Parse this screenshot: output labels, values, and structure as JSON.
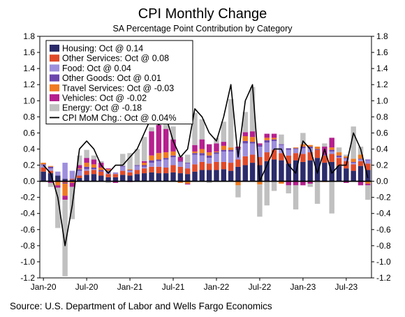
{
  "chart_data": {
    "type": "bar",
    "title": "CPI Monthly Change",
    "subtitle": "SA Percentage Point Contribution by Category",
    "source": "Source: U.S. Department of Labor and Wells Fargo Economics",
    "ylim": [
      -1.2,
      1.8
    ],
    "yticks": [
      -1.2,
      -1.0,
      -0.8,
      -0.6,
      -0.4,
      -0.2,
      0.0,
      0.2,
      0.4,
      0.6,
      0.8,
      1.0,
      1.2,
      1.4,
      1.6,
      1.8
    ],
    "ytick_labels": [
      "-1.2",
      "-1.0",
      "-0.8",
      "-0.6",
      "-0.4",
      "-0.2",
      "0.0",
      "0.2",
      "0.4",
      "0.6",
      "0.8",
      "1.0",
      "1.2",
      "1.4",
      "1.6",
      "1.8"
    ],
    "x_ticks": [
      {
        "index": 0,
        "label": "Jan-20"
      },
      {
        "index": 6,
        "label": "Jul-20"
      },
      {
        "index": 12,
        "label": "Jan-21"
      },
      {
        "index": 18,
        "label": "Jul-21"
      },
      {
        "index": 24,
        "label": "Jan-22"
      },
      {
        "index": 30,
        "label": "Jul-22"
      },
      {
        "index": 36,
        "label": "Jan-23"
      },
      {
        "index": 42,
        "label": "Jul-23"
      }
    ],
    "months": [
      "Jan-20",
      "Feb-20",
      "Mar-20",
      "Apr-20",
      "May-20",
      "Jun-20",
      "Jul-20",
      "Aug-20",
      "Sep-20",
      "Oct-20",
      "Nov-20",
      "Dec-20",
      "Jan-21",
      "Feb-21",
      "Mar-21",
      "Apr-21",
      "May-21",
      "Jun-21",
      "Jul-21",
      "Aug-21",
      "Sep-21",
      "Oct-21",
      "Nov-21",
      "Dec-21",
      "Jan-22",
      "Feb-22",
      "Mar-22",
      "Apr-22",
      "May-22",
      "Jun-22",
      "Jul-22",
      "Aug-22",
      "Sep-22",
      "Oct-22",
      "Nov-22",
      "Dec-22",
      "Jan-23",
      "Feb-23",
      "Mar-23",
      "Apr-23",
      "May-23",
      "Jun-23",
      "Jul-23",
      "Aug-23",
      "Sep-23",
      "Oct-23"
    ],
    "legend_placement": "top-left",
    "series": [
      {
        "name": "Housing: Oct @ 0.14",
        "color": "#2b2b6b",
        "values": [
          0.12,
          0.1,
          0.07,
          0.03,
          0.02,
          0.04,
          0.08,
          0.09,
          0.07,
          0.05,
          0.05,
          0.08,
          0.07,
          0.09,
          0.1,
          0.11,
          0.1,
          0.1,
          0.11,
          0.1,
          0.09,
          0.12,
          0.14,
          0.14,
          0.14,
          0.15,
          0.13,
          0.18,
          0.2,
          0.23,
          0.2,
          0.25,
          0.27,
          0.26,
          0.22,
          0.26,
          0.24,
          0.26,
          0.29,
          0.23,
          0.24,
          0.19,
          0.16,
          0.13,
          0.19,
          0.14
        ]
      },
      {
        "name": "Other Services: Oct @ 0.08",
        "color": "#e04a2a",
        "values": [
          0.05,
          0.03,
          0.0,
          -0.02,
          0.01,
          0.03,
          0.05,
          0.05,
          0.05,
          0.04,
          0.04,
          0.05,
          0.04,
          0.05,
          0.06,
          0.07,
          0.08,
          0.07,
          0.09,
          0.08,
          0.07,
          0.09,
          0.1,
          0.08,
          0.1,
          0.09,
          0.1,
          0.09,
          0.11,
          0.1,
          0.1,
          0.11,
          0.12,
          0.09,
          0.1,
          0.09,
          0.1,
          0.1,
          0.1,
          0.09,
          0.1,
          0.1,
          0.09,
          0.08,
          0.06,
          0.08
        ]
      },
      {
        "name": "Food: Oct @ 0.04",
        "color": "#9d8fdc",
        "values": [
          0.03,
          0.03,
          0.05,
          0.2,
          0.1,
          0.06,
          0.02,
          0.01,
          0.0,
          0.03,
          0.02,
          0.05,
          0.02,
          0.05,
          0.02,
          0.05,
          0.07,
          0.1,
          0.1,
          0.06,
          0.06,
          0.12,
          0.08,
          0.07,
          0.1,
          0.13,
          0.14,
          0.12,
          0.16,
          0.14,
          0.13,
          0.12,
          0.11,
          0.1,
          0.07,
          0.05,
          0.07,
          0.05,
          0.0,
          0.0,
          0.03,
          0.01,
          0.03,
          0.02,
          0.02,
          0.04
        ]
      },
      {
        "name": "Other Goods: Oct @ 0.01",
        "color": "#6b47ad",
        "values": [
          0.01,
          0.02,
          0.0,
          -0.01,
          0.0,
          0.02,
          0.03,
          0.02,
          0.02,
          0.01,
          0.0,
          0.01,
          0.01,
          0.01,
          0.02,
          0.03,
          0.02,
          0.02,
          0.02,
          0.01,
          0.01,
          0.02,
          0.03,
          0.03,
          0.02,
          0.02,
          0.02,
          0.02,
          0.03,
          0.02,
          0.02,
          0.03,
          0.02,
          0.01,
          0.02,
          0.01,
          0.02,
          0.02,
          0.01,
          0.01,
          0.02,
          0.02,
          0.01,
          0.01,
          0.01,
          0.01
        ]
      },
      {
        "name": "Travel Services: Oct @ -0.03",
        "color": "#f07b22",
        "values": [
          0.02,
          0.01,
          -0.05,
          -0.15,
          -0.02,
          0.01,
          0.05,
          0.04,
          0.03,
          0.02,
          0.0,
          0.0,
          0.01,
          0.0,
          0.03,
          0.06,
          0.08,
          0.07,
          0.05,
          -0.02,
          -0.03,
          0.02,
          0.05,
          0.04,
          0.01,
          0.05,
          0.03,
          -0.05,
          0.06,
          0.06,
          -0.04,
          0.03,
          0.02,
          -0.03,
          0.0,
          0.01,
          0.03,
          0.02,
          0.03,
          -0.01,
          0.03,
          0.04,
          0.02,
          0.04,
          0.05,
          -0.03
        ]
      },
      {
        "name": "Vehicles: Oct @ -0.02",
        "color": "#b5208e",
        "values": [
          0.0,
          -0.02,
          -0.03,
          -0.05,
          -0.05,
          0.04,
          0.06,
          0.06,
          0.06,
          0.01,
          -0.02,
          0.0,
          -0.01,
          0.0,
          0.02,
          0.3,
          0.35,
          0.29,
          0.15,
          0.05,
          -0.01,
          0.08,
          0.12,
          0.1,
          0.1,
          0.05,
          0.0,
          0.02,
          0.05,
          0.07,
          0.02,
          0.05,
          0.05,
          0.0,
          -0.05,
          -0.05,
          -0.05,
          -0.03,
          0.0,
          0.1,
          0.12,
          0.0,
          -0.02,
          0.0,
          -0.05,
          -0.02
        ]
      },
      {
        "name": "Energy: Oct @ -0.18",
        "color": "#c0c0c0",
        "values": [
          0.0,
          -0.05,
          -0.5,
          -0.95,
          -0.4,
          0.12,
          0.1,
          0.05,
          0.02,
          -0.02,
          0.0,
          0.15,
          0.2,
          0.2,
          0.3,
          0.05,
          0.05,
          0.15,
          0.16,
          0.02,
          0.1,
          0.4,
          0.25,
          -0.02,
          0.07,
          0.25,
          0.6,
          -0.15,
          0.25,
          0.55,
          -0.4,
          -0.3,
          -0.12,
          0.12,
          -0.1,
          -0.3,
          0.14,
          -0.04,
          -0.28,
          0.04,
          -0.4,
          0.06,
          0.02,
          0.4,
          0.1,
          -0.18
        ]
      }
    ],
    "line": {
      "name": "CPI MoM Chg.: Oct @ 0.04%",
      "color": "#000000",
      "values": [
        0.2,
        0.1,
        -0.2,
        -0.8,
        -0.3,
        0.4,
        0.5,
        0.4,
        0.2,
        0.1,
        0.2,
        0.2,
        0.3,
        0.4,
        0.6,
        0.8,
        0.7,
        0.8,
        0.5,
        0.3,
        0.4,
        0.9,
        0.8,
        0.6,
        0.5,
        0.8,
        1.2,
        0.3,
        1.0,
        1.2,
        0.0,
        0.2,
        0.4,
        0.4,
        0.2,
        0.1,
        0.5,
        0.4,
        0.1,
        0.4,
        0.1,
        0.2,
        0.2,
        0.6,
        0.4,
        0.04
      ]
    }
  }
}
